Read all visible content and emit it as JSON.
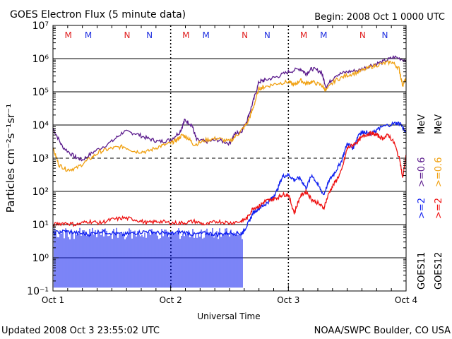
{
  "header": {
    "title": "GOES Electron Flux (5 minute data)",
    "begin": "Begin: 2008 Oct 1 0000 UTC"
  },
  "footer": {
    "updated": "Updated 2008 Oct  3 23:55:02 UTC",
    "source": "NOAA/SWPC Boulder, CO USA"
  },
  "markers": [
    {
      "label": "M",
      "day": 0.13,
      "color": "#e02020"
    },
    {
      "label": "M",
      "day": 0.3,
      "color": "#2030e0"
    },
    {
      "label": "N",
      "day": 0.63,
      "color": "#e02020"
    },
    {
      "label": "N",
      "day": 0.82,
      "color": "#2030e0"
    },
    {
      "label": "M",
      "day": 1.13,
      "color": "#e02020"
    },
    {
      "label": "M",
      "day": 1.3,
      "color": "#2030e0"
    },
    {
      "label": "N",
      "day": 1.63,
      "color": "#e02020"
    },
    {
      "label": "N",
      "day": 1.82,
      "color": "#2030e0"
    },
    {
      "label": "M",
      "day": 2.13,
      "color": "#e02020"
    },
    {
      "label": "M",
      "day": 2.3,
      "color": "#2030e0"
    },
    {
      "label": "N",
      "day": 2.63,
      "color": "#e02020"
    },
    {
      "label": "N",
      "day": 2.82,
      "color": "#2030e0"
    }
  ],
  "right_labels": {
    "goes11": "GOES11",
    "goes12": "GOES12",
    "goes11_low": ">=2",
    "goes11_high": ">=0.6",
    "goes12_low": ">=2",
    "goes12_high": ">=0.6",
    "unit": "MeV"
  },
  "chart_data": {
    "type": "line",
    "title": "GOES Electron Flux (5 minute data)",
    "xlabel": "Universal Time",
    "ylabel": "Particles cm⁻²s⁻¹sr⁻¹",
    "x_ticks": [
      "Oct 1",
      "Oct 2",
      "Oct 3",
      "Oct 4"
    ],
    "xlim": [
      0,
      3
    ],
    "y_scale": "log",
    "ylim_exp": [
      -1,
      7
    ],
    "y_ticks": [
      "10⁻¹",
      "10⁰",
      "10¹",
      "10²",
      "10³",
      "10⁴",
      "10⁵",
      "10⁶",
      "10⁷"
    ],
    "reference_line_exp": 3,
    "series": [
      {
        "name": "GOES11 >=0.6 MeV",
        "color": "#5a1a8c",
        "points": [
          [
            0.0,
            3.9
          ],
          [
            0.08,
            3.35
          ],
          [
            0.18,
            3.05
          ],
          [
            0.25,
            2.95
          ],
          [
            0.35,
            3.2
          ],
          [
            0.5,
            3.5
          ],
          [
            0.6,
            3.8
          ],
          [
            0.7,
            3.75
          ],
          [
            0.8,
            3.6
          ],
          [
            0.9,
            3.5
          ],
          [
            1.0,
            3.55
          ],
          [
            1.08,
            3.8
          ],
          [
            1.12,
            4.15
          ],
          [
            1.18,
            4.0
          ],
          [
            1.22,
            3.55
          ],
          [
            1.3,
            3.5
          ],
          [
            1.4,
            3.55
          ],
          [
            1.5,
            3.45
          ],
          [
            1.55,
            3.75
          ],
          [
            1.6,
            3.8
          ],
          [
            1.65,
            4.15
          ],
          [
            1.7,
            4.7
          ],
          [
            1.75,
            5.3
          ],
          [
            1.8,
            5.35
          ],
          [
            1.9,
            5.45
          ],
          [
            2.0,
            5.6
          ],
          [
            2.1,
            5.7
          ],
          [
            2.15,
            5.55
          ],
          [
            2.2,
            5.7
          ],
          [
            2.28,
            5.6
          ],
          [
            2.32,
            5.15
          ],
          [
            2.4,
            5.5
          ],
          [
            2.5,
            5.6
          ],
          [
            2.6,
            5.65
          ],
          [
            2.7,
            5.8
          ],
          [
            2.8,
            5.9
          ],
          [
            2.9,
            6.05
          ],
          [
            3.0,
            5.95
          ]
        ]
      },
      {
        "name": "GOES12 >=0.6 MeV",
        "color": "#f0a010",
        "points": [
          [
            0.0,
            3.3
          ],
          [
            0.05,
            2.8
          ],
          [
            0.12,
            2.65
          ],
          [
            0.2,
            2.7
          ],
          [
            0.3,
            2.95
          ],
          [
            0.4,
            3.2
          ],
          [
            0.5,
            3.3
          ],
          [
            0.6,
            3.35
          ],
          [
            0.7,
            3.2
          ],
          [
            0.8,
            3.2
          ],
          [
            0.9,
            3.35
          ],
          [
            1.0,
            3.45
          ],
          [
            1.05,
            3.55
          ],
          [
            1.1,
            3.7
          ],
          [
            1.15,
            3.6
          ],
          [
            1.2,
            3.4
          ],
          [
            1.3,
            3.55
          ],
          [
            1.4,
            3.6
          ],
          [
            1.5,
            3.5
          ],
          [
            1.58,
            3.75
          ],
          [
            1.65,
            4.05
          ],
          [
            1.7,
            4.5
          ],
          [
            1.75,
            5.1
          ],
          [
            1.8,
            5.15
          ],
          [
            1.9,
            5.25
          ],
          [
            2.0,
            5.3
          ],
          [
            2.05,
            5.2
          ],
          [
            2.1,
            5.35
          ],
          [
            2.15,
            5.25
          ],
          [
            2.2,
            5.3
          ],
          [
            2.28,
            5.2
          ],
          [
            2.32,
            5.05
          ],
          [
            2.4,
            5.35
          ],
          [
            2.5,
            5.5
          ],
          [
            2.6,
            5.6
          ],
          [
            2.7,
            5.75
          ],
          [
            2.8,
            5.85
          ],
          [
            2.88,
            5.9
          ],
          [
            2.94,
            5.7
          ],
          [
            2.97,
            5.2
          ],
          [
            3.0,
            5.4
          ]
        ]
      },
      {
        "name": "GOES11 >=2 MeV",
        "color": "#1020f0",
        "points": [
          [
            0.0,
            0.75
          ],
          [
            0.1,
            0.8
          ],
          [
            0.2,
            0.75
          ],
          [
            0.3,
            0.7
          ],
          [
            0.4,
            0.8
          ],
          [
            0.5,
            0.75
          ],
          [
            0.6,
            0.7
          ],
          [
            0.7,
            0.75
          ],
          [
            0.8,
            0.8
          ],
          [
            0.9,
            0.75
          ],
          [
            1.0,
            0.72
          ],
          [
            1.1,
            0.78
          ],
          [
            1.2,
            0.7
          ],
          [
            1.3,
            0.75
          ],
          [
            1.4,
            0.7
          ],
          [
            1.5,
            0.75
          ],
          [
            1.6,
            0.72
          ],
          [
            1.62,
            0.8
          ],
          [
            1.66,
            1.05
          ],
          [
            1.7,
            1.35
          ],
          [
            1.75,
            1.5
          ],
          [
            1.8,
            1.6
          ],
          [
            1.85,
            1.75
          ],
          [
            1.9,
            2.0
          ],
          [
            1.95,
            2.45
          ],
          [
            2.0,
            2.5
          ],
          [
            2.05,
            2.35
          ],
          [
            2.1,
            2.4
          ],
          [
            2.15,
            2.1
          ],
          [
            2.2,
            2.5
          ],
          [
            2.25,
            2.2
          ],
          [
            2.3,
            1.9
          ],
          [
            2.35,
            2.35
          ],
          [
            2.4,
            2.6
          ],
          [
            2.45,
            2.9
          ],
          [
            2.5,
            3.45
          ],
          [
            2.55,
            3.3
          ],
          [
            2.6,
            3.75
          ],
          [
            2.65,
            3.8
          ],
          [
            2.7,
            3.7
          ],
          [
            2.75,
            3.85
          ],
          [
            2.8,
            3.95
          ],
          [
            2.9,
            4.05
          ],
          [
            2.95,
            4.05
          ],
          [
            3.0,
            3.75
          ]
        ]
      },
      {
        "name": "GOES12 >=2 MeV",
        "color": "#ee1111",
        "points": [
          [
            0.0,
            1.0
          ],
          [
            0.1,
            1.05
          ],
          [
            0.2,
            1.0
          ],
          [
            0.3,
            1.1
          ],
          [
            0.4,
            1.05
          ],
          [
            0.5,
            1.15
          ],
          [
            0.6,
            1.2
          ],
          [
            0.7,
            1.15
          ],
          [
            0.8,
            1.05
          ],
          [
            0.9,
            1.1
          ],
          [
            1.0,
            1.05
          ],
          [
            1.1,
            1.05
          ],
          [
            1.2,
            1.1
          ],
          [
            1.3,
            1.0
          ],
          [
            1.4,
            1.1
          ],
          [
            1.5,
            1.05
          ],
          [
            1.6,
            1.1
          ],
          [
            1.65,
            1.2
          ],
          [
            1.7,
            1.5
          ],
          [
            1.75,
            1.55
          ],
          [
            1.8,
            1.7
          ],
          [
            1.85,
            1.75
          ],
          [
            1.9,
            1.8
          ],
          [
            1.95,
            1.9
          ],
          [
            2.0,
            1.9
          ],
          [
            2.05,
            1.35
          ],
          [
            2.1,
            1.85
          ],
          [
            2.15,
            2.0
          ],
          [
            2.2,
            1.75
          ],
          [
            2.25,
            1.65
          ],
          [
            2.3,
            1.5
          ],
          [
            2.35,
            2.0
          ],
          [
            2.4,
            2.3
          ],
          [
            2.45,
            2.6
          ],
          [
            2.5,
            3.3
          ],
          [
            2.55,
            3.4
          ],
          [
            2.6,
            3.55
          ],
          [
            2.65,
            3.7
          ],
          [
            2.7,
            3.75
          ],
          [
            2.75,
            3.7
          ],
          [
            2.8,
            3.6
          ],
          [
            2.85,
            3.7
          ],
          [
            2.9,
            3.45
          ],
          [
            2.95,
            2.9
          ],
          [
            2.97,
            2.4
          ],
          [
            3.0,
            3.1
          ]
        ]
      }
    ],
    "goes11_low_dropout": {
      "segments": [
        [
          0.0,
          1.62
        ]
      ],
      "floor_exp": -0.9
    }
  }
}
